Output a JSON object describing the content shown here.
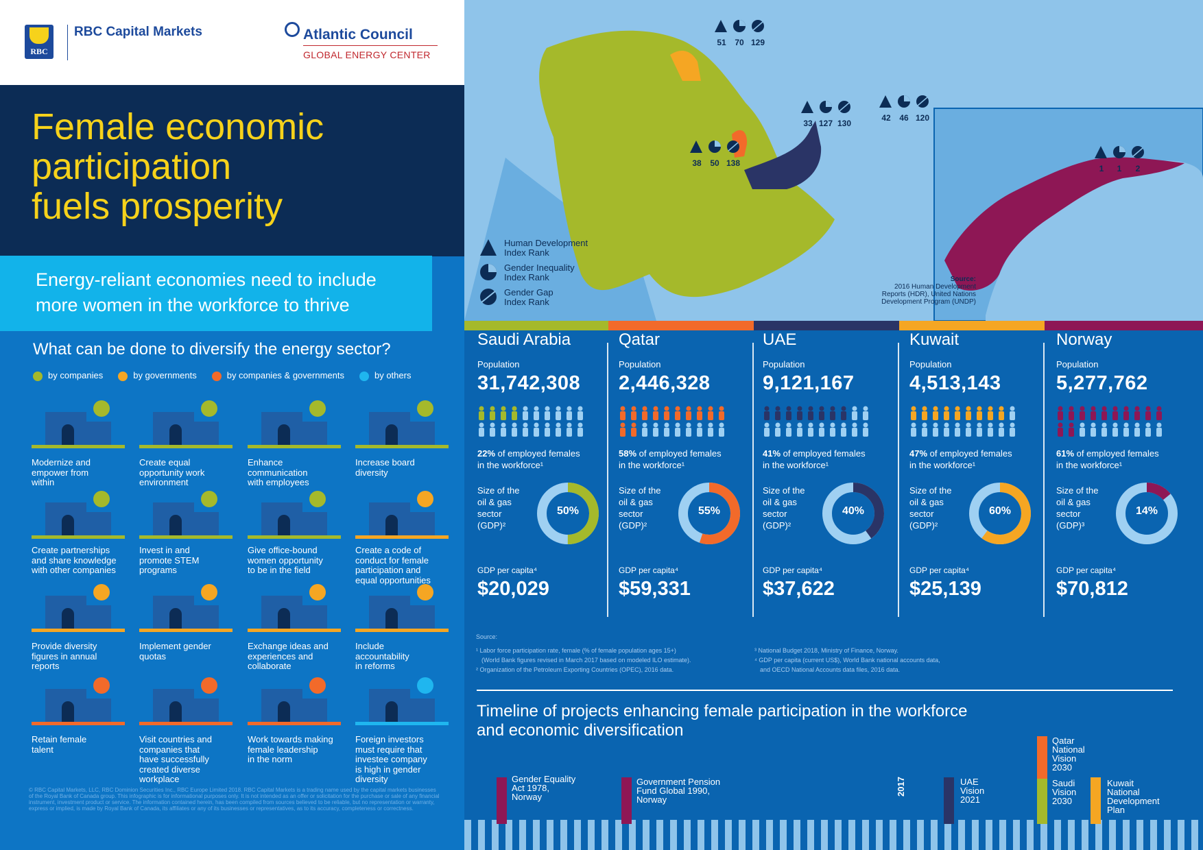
{
  "logos": {
    "rbc": "RBC",
    "rbc_name": "RBC Capital Markets",
    "ac_name": "Atlantic Council",
    "ac_sub": "GLOBAL ENERGY CENTER"
  },
  "header": {
    "title_line1": "Female economic",
    "title_line2": "participation",
    "title_line3": "fuels prosperity",
    "subtitle_line1": "Energy-reliant economies need to include",
    "subtitle_line2": "more women in the workforce to thrive"
  },
  "actions_section": {
    "question": "What can be done to diversify the energy sector?",
    "legend": [
      {
        "label": "by companies",
        "color": "#a5b92b"
      },
      {
        "label": "by governments",
        "color": "#f5a623"
      },
      {
        "label": "by companies & governments",
        "color": "#f26a2a"
      },
      {
        "label": "by others",
        "color": "#1fb6ef"
      }
    ],
    "items": [
      {
        "label": "Modernize and\nempower from\nwithin",
        "color": "#a5b92b"
      },
      {
        "label": "Create equal\nopportunity work\nenvironment",
        "color": "#a5b92b"
      },
      {
        "label": "Enhance\ncommunication\nwith employees",
        "color": "#a5b92b"
      },
      {
        "label": "Increase board\ndiversity",
        "color": "#a5b92b"
      },
      {
        "label": "Create partnerships\nand share knowledge\nwith other companies",
        "color": "#a5b92b"
      },
      {
        "label": "Invest in and\npromote STEM\nprograms",
        "color": "#a5b92b"
      },
      {
        "label": "Give office-bound\nwomen opportunity\nto be in the field",
        "color": "#a5b92b"
      },
      {
        "label": "Create a code of\nconduct for female\nparticipation and\nequal opportunities",
        "color": "#f5a623"
      },
      {
        "label": "Provide diversity\nfigures in annual\nreports",
        "color": "#f5a623"
      },
      {
        "label": "Implement gender\nquotas",
        "color": "#f5a623"
      },
      {
        "label": "Exchange ideas and\nexperiences and\ncollaborate",
        "color": "#f5a623"
      },
      {
        "label": "Include\naccountability\nin reforms",
        "color": "#f5a623"
      },
      {
        "label": "Retain female\ntalent",
        "color": "#f26a2a"
      },
      {
        "label": "Visit countries and\ncompanies that\nhave successfully\ncreated diverse\nworkplace",
        "color": "#f26a2a"
      },
      {
        "label": "Work towards making\nfemale leadership\nin the norm",
        "color": "#f26a2a"
      },
      {
        "label": "Foreign investors\nmust require that\ninvestee company\nis high in gender\ndiversity",
        "color": "#1fb6ef"
      }
    ],
    "disclaimer": "© RBC Capital Markets, LLC, RBC Dominion Securities Inc., RBC Europe Limited 2018. RBC Capital Markets is a trading name used by the capital markets businesses of the Royal Bank of Canada group. This infographic is for informational purposes only. It is not intended as an offer or solicitation for the purchase or sale of any financial instrument, investment product or service. The information contained herein, has been compiled from sources believed to be reliable, but no representation or warranty, express or implied, is made by Royal Bank of Canada, its affiliates or any of its businesses or representatives, as to its accuracy, completeness or correctness."
  },
  "map": {
    "ranks": [
      {
        "hdi": "51",
        "gii": "70",
        "ggi": "129"
      },
      {
        "hdi": "33",
        "gii": "127",
        "ggi": "130"
      },
      {
        "hdi": "42",
        "gii": "46",
        "ggi": "120"
      },
      {
        "hdi": "38",
        "gii": "50",
        "ggi": "138"
      },
      {
        "hdi": "1",
        "gii": "1",
        "ggi": "2"
      }
    ],
    "legend": {
      "hdi_line1": "Human Development",
      "hdi_line2": "Index Rank",
      "gii_line1": "Gender Inequality",
      "gii_line2": "Index Rank",
      "ggi_line1": "Gender Gap",
      "ggi_line2": "Index Rank"
    },
    "source_title": "Source:",
    "source_line1": "2016 Human Development",
    "source_line2": "Reports (HDR), United Nations",
    "source_line3": "Development Program (UNDP)"
  },
  "countries": [
    {
      "name": "Saudi Arabia",
      "pop_label": "Population",
      "population": "31,742,308",
      "emp_pct": "22%",
      "emp_text": " of employed females",
      "emp_text2": "in the workforce¹",
      "female_share": 0.22,
      "size_label": "Size of the\noil & gas\nsector\n(GDP)²",
      "oil_gas_pct": "50%",
      "oil_gas": 50,
      "gdp_label": "GDP per capita⁴",
      "gdp": "$20,029",
      "color": "#a5b92b"
    },
    {
      "name": "Qatar",
      "pop_label": "Population",
      "population": "2,446,328",
      "emp_pct": "58%",
      "emp_text": " of employed females",
      "emp_text2": "in the workforce¹",
      "female_share": 0.58,
      "size_label": "Size of the\noil & gas\nsector\n(GDP)²",
      "oil_gas_pct": "55%",
      "oil_gas": 55,
      "gdp_label": "GDP per capita⁴",
      "gdp": "$59,331",
      "color": "#f26a2a"
    },
    {
      "name": "UAE",
      "pop_label": "Population",
      "population": "9,121,167",
      "emp_pct": "41%",
      "emp_text": " of employed females",
      "emp_text2": "in the workforce¹",
      "female_share": 0.41,
      "size_label": "Size of the\noil & gas\nsector\n(GDP)²",
      "oil_gas_pct": "40%",
      "oil_gas": 40,
      "gdp_label": "GDP per capita⁴",
      "gdp": "$37,622",
      "color": "#2a3466"
    },
    {
      "name": "Kuwait",
      "pop_label": "Population",
      "population": "4,513,143",
      "emp_pct": "47%",
      "emp_text": " of employed females",
      "emp_text2": "in the workforce¹",
      "female_share": 0.47,
      "size_label": "Size of the\noil & gas\nsector\n(GDP)²",
      "oil_gas_pct": "60%",
      "oil_gas": 60,
      "gdp_label": "GDP per capita⁴",
      "gdp": "$25,139",
      "color": "#f5a623"
    },
    {
      "name": "Norway",
      "pop_label": "Population",
      "population": "5,277,762",
      "emp_pct": "61%",
      "emp_text": " of employed females",
      "emp_text2": "in the workforce¹",
      "female_share": 0.61,
      "size_label": "Size of the\noil & gas\nsector\n(GDP)³",
      "oil_gas_pct": "14%",
      "oil_gas": 14,
      "gdp_label": "GDP per capita⁴",
      "gdp": "$70,812",
      "color": "#8e1755"
    }
  ],
  "sources": {
    "title": "Source:",
    "left1": "¹ Labor force participation rate, female (% of female population ages 15+)",
    "left2": "(World Bank figures revised in March 2017 based on modeled ILO estimate).",
    "left3": "² Organization of the Petroleum Exporting Countries (OPEC), 2016 data.",
    "right1": "³ National Budget 2018, Ministry of Finance, Norway.",
    "right2": "⁴ GDP per capita (current US$), World Bank national accounts data,",
    "right3": "and OECD National Accounts data files, 2016 data."
  },
  "timeline": {
    "title_line1": "Timeline of projects enhancing female participation in the workforce",
    "title_line2": "and economic diversification",
    "year": "2017",
    "events": [
      {
        "label": "Gender Equality\nAct 1978,\nNorway",
        "color": "#8e1755"
      },
      {
        "label": "Government Pension\nFund Global 1990,\nNorway",
        "color": "#8e1755"
      },
      {
        "label": "UAE\nVision\n2021",
        "color": "#2a3466"
      },
      {
        "label": "Qatar\nNational\nVision\n2030",
        "color": "#f26a2a"
      },
      {
        "label": "Saudi\nVision\n2030",
        "color": "#a5b92b"
      },
      {
        "label": "Kuwait\nNational\nDevelopment\nPlan",
        "color": "#f5a623"
      }
    ]
  }
}
